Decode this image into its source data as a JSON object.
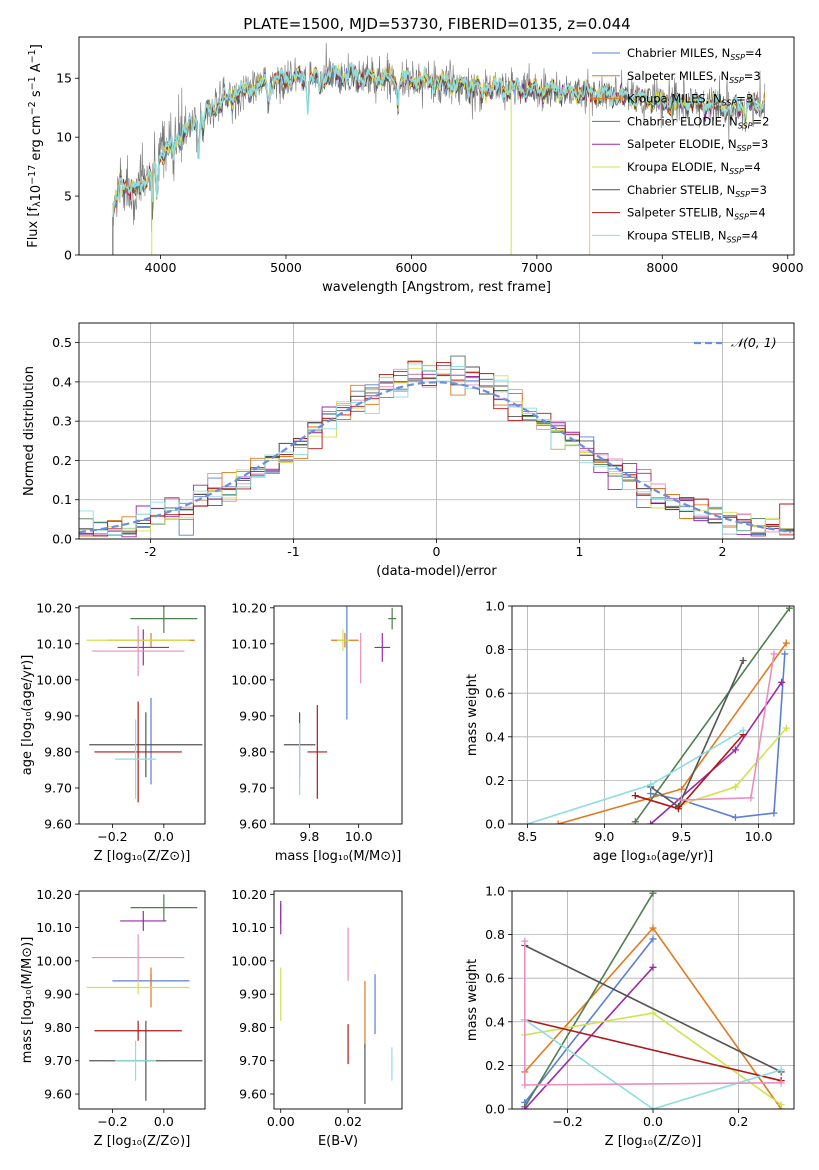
{
  "figure": {
    "title": "PLATE=1500, MJD=53730, FIBERID=0135, z=0.044"
  },
  "colors": {
    "series": [
      "#5b7fd6",
      "#e6e14f",
      "#e07a1f",
      "#4f7f4f",
      "#9b2aa8",
      "#d0e252",
      "#555555",
      "#b01818",
      "#8fdde0"
    ],
    "pink": "#e98fc2",
    "gauss": "#6a8fe0",
    "grid": "#b0b0b0"
  },
  "chart_data": [
    {
      "id": "spectrum",
      "type": "line",
      "xlabel": "wavelength [Angstrom, rest frame]",
      "ylabel_parts": [
        "Flux [f",
        "λ",
        "10",
        "−17",
        " erg cm",
        "−2",
        " s",
        "−1",
        " A",
        "−1",
        "]"
      ],
      "xlim": [
        3350,
        9050
      ],
      "ylim": [
        0,
        18.5
      ],
      "xticks": [
        4000,
        5000,
        6000,
        7000,
        8000,
        9000
      ],
      "yticks": [
        0,
        5,
        10,
        15
      ],
      "grid": false,
      "legend_position": "top-right",
      "legend": [
        {
          "name": "Chabrier MILES, N",
          "sub": "SSP",
          "tail": "=4"
        },
        {
          "name": "Salpeter MILES, N",
          "sub": "SSP",
          "tail": "=3"
        },
        {
          "name": "Kroupa MILES, N",
          "sub": "SSP",
          "tail": "=3"
        },
        {
          "name": "Chabrier ELODIE, N",
          "sub": "SSP",
          "tail": "=2"
        },
        {
          "name": "Salpeter ELODIE, N",
          "sub": "SSP",
          "tail": "=3"
        },
        {
          "name": "Kroupa ELODIE, N",
          "sub": "SSP",
          "tail": "=4"
        },
        {
          "name": "Chabrier STELIB, N",
          "sub": "SSP",
          "tail": "=3"
        },
        {
          "name": "Salpeter STELIB, N",
          "sub": "SSP",
          "tail": "=4"
        },
        {
          "name": "Kroupa STELIB, N",
          "sub": "SSP",
          "tail": "=4"
        }
      ],
      "continuum": [
        [
          3620,
          3.2
        ],
        [
          3680,
          6.3
        ],
        [
          3780,
          5.3
        ],
        [
          3900,
          6.6
        ],
        [
          4000,
          8.4
        ],
        [
          4100,
          9.6
        ],
        [
          4250,
          10.9
        ],
        [
          4400,
          12.4
        ],
        [
          4600,
          13.6
        ],
        [
          4800,
          14.4
        ],
        [
          5000,
          14.9
        ],
        [
          5200,
          15.0
        ],
        [
          5400,
          15.3
        ],
        [
          5600,
          15.1
        ],
        [
          5800,
          15.0
        ],
        [
          6000,
          14.8
        ],
        [
          6300,
          14.5
        ],
        [
          6600,
          14.2
        ],
        [
          7000,
          14.0
        ],
        [
          7300,
          13.8
        ],
        [
          7600,
          13.6
        ],
        [
          8000,
          13.0
        ],
        [
          8400,
          12.7
        ],
        [
          8820,
          12.8
        ]
      ],
      "absorption_lines": [
        [
          3935,
          3.5
        ],
        [
          3970,
          3.0
        ],
        [
          4102,
          1.5
        ],
        [
          4305,
          2.2
        ],
        [
          4341,
          1.2
        ],
        [
          4862,
          1.5
        ],
        [
          5175,
          2.3
        ],
        [
          5270,
          1.2
        ],
        [
          5890,
          2.0
        ],
        [
          6563,
          1.5
        ],
        [
          8500,
          1.0
        ],
        [
          8545,
          1.5
        ],
        [
          8665,
          1.2
        ]
      ],
      "dropouts": [
        {
          "series": 5,
          "x": 6795,
          "to": 0
        },
        {
          "series": 2,
          "x": 7420,
          "to": 0
        },
        {
          "series": 1,
          "x": 7420,
          "to": 0
        },
        {
          "series": 5,
          "x": 3930,
          "to": 0
        },
        {
          "series": 6,
          "x": 3620,
          "to": 0
        }
      ]
    },
    {
      "id": "residuals",
      "type": "line",
      "xlabel": "(data-model)/error",
      "ylabel": "Normed distribution",
      "xlim": [
        -2.5,
        2.5
      ],
      "ylim": [
        0,
        0.55
      ],
      "xticks": [
        -2,
        -1,
        0,
        1,
        2
      ],
      "yticks": [
        0.0,
        0.1,
        0.2,
        0.3,
        0.4,
        0.5
      ],
      "grid": true,
      "legend_position": "top-right",
      "legend": [
        {
          "name": "𝒩(0, 1)"
        }
      ],
      "bin_width": 0.1,
      "gaussian": {
        "mu": 0,
        "sigma": 1
      }
    },
    {
      "id": "age-vs-Z",
      "type": "scatter",
      "xlabel": "Z [log₁₀(Z/Z⊙)]",
      "ylabel": "age  [log₁₀(age/yr)]",
      "xlim": [
        -0.33,
        0.16
      ],
      "ylim": [
        9.6,
        10.205
      ],
      "xticks": [
        -0.2,
        0.0
      ],
      "yticks": [
        9.6,
        9.7,
        9.8,
        9.9,
        10.0,
        10.1,
        10.2
      ],
      "grid": false,
      "points": [
        {
          "color": "#5b7fd6",
          "x": -0.05,
          "y": 9.83,
          "xerr": 0.0,
          "yerr": 0.12
        },
        {
          "color": "#e07a1f",
          "x": -0.05,
          "y": 10.11,
          "xerr": 0.17,
          "yerr": 0.02
        },
        {
          "color": "#4f7f4f",
          "x": 0.0,
          "y": 10.17,
          "xerr": 0.13,
          "yerr": 0.04
        },
        {
          "color": "#9b2aa8",
          "x": -0.08,
          "y": 10.09,
          "xerr": 0.1,
          "yerr": 0.05
        },
        {
          "color": "#d0e252",
          "x": -0.1,
          "y": 10.11,
          "xerr": 0.2,
          "yerr": 0.03
        },
        {
          "color": "#555555",
          "x": -0.07,
          "y": 9.82,
          "xerr": 0.22,
          "yerr": 0.09
        },
        {
          "color": "#b01818",
          "x": -0.1,
          "y": 9.8,
          "xerr": 0.17,
          "yerr": 0.14
        },
        {
          "color": "#8fdde0",
          "x": -0.11,
          "y": 9.78,
          "xerr": 0.08,
          "yerr": 0.11
        },
        {
          "color": "#e98fc2",
          "x": -0.1,
          "y": 10.08,
          "xerr": 0.18,
          "yerr": 0.07
        }
      ]
    },
    {
      "id": "age-vs-mass",
      "type": "scatter",
      "xlabel": "mass [log₁₀(M/M⊙)]",
      "xlim": [
        9.57,
        10.22
      ],
      "ylim": [
        9.6,
        10.205
      ],
      "xticks": [
        9.75,
        10.0
      ],
      "yticks": [
        9.6,
        9.7,
        9.8,
        9.9,
        10.0,
        10.1,
        10.2
      ],
      "grid": false,
      "points": [
        {
          "color": "#5b7fd6",
          "x": 9.94,
          "y": 10.1,
          "xerr": 0.0,
          "yerr": 0.21
        },
        {
          "color": "#e07a1f",
          "x": 9.93,
          "y": 10.11,
          "xerr": 0.07,
          "yerr": 0.02
        },
        {
          "color": "#4f7f4f",
          "x": 10.17,
          "y": 10.17,
          "xerr": 0.02,
          "yerr": 0.03
        },
        {
          "color": "#9b2aa8",
          "x": 10.12,
          "y": 10.09,
          "xerr": 0.04,
          "yerr": 0.04
        },
        {
          "color": "#d0e252",
          "x": 9.92,
          "y": 10.11,
          "xerr": 0.03,
          "yerr": 0.03
        },
        {
          "color": "#555555",
          "x": 9.7,
          "y": 9.82,
          "xerr": 0.08,
          "yerr": 0.09
        },
        {
          "color": "#b01818",
          "x": 9.79,
          "y": 9.8,
          "xerr": 0.05,
          "yerr": 0.13
        },
        {
          "color": "#8fdde0",
          "x": 9.7,
          "y": 9.78,
          "xerr": 0.0,
          "yerr": 0.1
        },
        {
          "color": "#e98fc2",
          "x": 10.01,
          "y": 10.06,
          "xerr": 0.0,
          "yerr": 0.07
        }
      ]
    },
    {
      "id": "weight-vs-age",
      "type": "line",
      "xlabel": "age  [log₁₀(age/yr)]",
      "ylabel": "mass weight",
      "xlim": [
        8.4,
        10.23
      ],
      "ylim": [
        0,
        1.0
      ],
      "xticks": [
        8.5,
        9.0,
        9.5,
        10.0
      ],
      "yticks": [
        0.0,
        0.2,
        0.4,
        0.6,
        0.8,
        1.0
      ],
      "grid": true,
      "series": [
        {
          "color": "#5b7fd6",
          "points": [
            [
              9.3,
              0.14
            ],
            [
              9.5,
              0.11
            ],
            [
              9.85,
              0.03
            ],
            [
              10.1,
              0.05
            ],
            [
              10.17,
              0.78
            ]
          ]
        },
        {
          "color": "#e07a1f",
          "points": [
            [
              8.7,
              0.0
            ],
            [
              9.5,
              0.16
            ],
            [
              10.18,
              0.83
            ]
          ]
        },
        {
          "color": "#4f7f4f",
          "points": [
            [
              9.2,
              0.01
            ],
            [
              10.2,
              0.99
            ]
          ]
        },
        {
          "color": "#9b2aa8",
          "points": [
            [
              9.3,
              0.0
            ],
            [
              9.85,
              0.34
            ],
            [
              10.15,
              0.65
            ]
          ]
        },
        {
          "color": "#d0e252",
          "points": [
            [
              9.5,
              0.09
            ],
            [
              9.85,
              0.17
            ],
            [
              10.18,
              0.44
            ]
          ]
        },
        {
          "color": "#555555",
          "points": [
            [
              9.3,
              0.17
            ],
            [
              9.48,
              0.08
            ],
            [
              9.9,
              0.75
            ]
          ]
        },
        {
          "color": "#b01818",
          "points": [
            [
              9.2,
              0.13
            ],
            [
              9.48,
              0.07
            ],
            [
              9.9,
              0.41
            ]
          ]
        },
        {
          "color": "#8fdde0",
          "points": [
            [
              8.5,
              0.0
            ],
            [
              9.3,
              0.18
            ],
            [
              9.9,
              0.43
            ]
          ]
        },
        {
          "color": "#e98fc2",
          "points": [
            [
              9.5,
              0.11
            ],
            [
              9.95,
              0.12
            ],
            [
              10.1,
              0.78
            ]
          ]
        }
      ]
    },
    {
      "id": "mass-vs-Z",
      "type": "scatter",
      "xlabel": "Z [log₁₀(Z/Z⊙)]",
      "ylabel": "mass [log₁₀(M/M⊙)]",
      "xlim": [
        -0.33,
        0.16
      ],
      "ylim": [
        9.555,
        10.21
      ],
      "xticks": [
        -0.2,
        0.0
      ],
      "yticks": [
        9.6,
        9.7,
        9.8,
        9.9,
        10.0,
        10.1,
        10.2
      ],
      "grid": false,
      "points": [
        {
          "color": "#5b7fd6",
          "x": -0.05,
          "y": 9.94,
          "xerr": 0.15,
          "yerr": 0.02
        },
        {
          "color": "#e07a1f",
          "x": -0.05,
          "y": 9.92,
          "xerr": 0.0,
          "yerr": 0.06
        },
        {
          "color": "#4f7f4f",
          "x": 0.0,
          "y": 10.16,
          "xerr": 0.13,
          "yerr": 0.04
        },
        {
          "color": "#9b2aa8",
          "x": -0.08,
          "y": 10.12,
          "xerr": 0.09,
          "yerr": 0.03
        },
        {
          "color": "#d0e252",
          "x": -0.1,
          "y": 9.92,
          "xerr": 0.2,
          "yerr": 0.02
        },
        {
          "color": "#555555",
          "x": -0.07,
          "y": 9.7,
          "xerr": 0.22,
          "yerr": 0.12
        },
        {
          "color": "#b01818",
          "x": -0.1,
          "y": 9.79,
          "xerr": 0.17,
          "yerr": 0.03
        },
        {
          "color": "#8fdde0",
          "x": -0.11,
          "y": 9.7,
          "xerr": 0.08,
          "yerr": 0.06
        },
        {
          "color": "#e98fc2",
          "x": -0.1,
          "y": 10.01,
          "xerr": 0.18,
          "yerr": 0.07
        }
      ]
    },
    {
      "id": "mass-vs-ebv",
      "type": "scatter",
      "xlabel": "E(B-V)",
      "xlim": [
        -0.002,
        0.036
      ],
      "ylim": [
        9.555,
        10.21
      ],
      "xticks": [
        0.0,
        0.02
      ],
      "yticks": [
        9.6,
        9.7,
        9.8,
        9.9,
        10.0,
        10.1,
        10.2
      ],
      "grid": false,
      "points": [
        {
          "color": "#5b7fd6",
          "x": 0.028,
          "y": 9.87,
          "xerr": 0.0,
          "yerr": 0.09
        },
        {
          "color": "#e07a1f",
          "x": 0.025,
          "y": 9.84,
          "xerr": 0.0,
          "yerr": 0.1
        },
        {
          "color": "#4f7f4f",
          "x": 0.0,
          "y": 10.14,
          "xerr": 0.0,
          "yerr": 0.03
        },
        {
          "color": "#9b2aa8",
          "x": 0.0,
          "y": 10.13,
          "xerr": 0.0,
          "yerr": 0.05
        },
        {
          "color": "#d0e252",
          "x": 0.0,
          "y": 9.9,
          "xerr": 0.0,
          "yerr": 0.08
        },
        {
          "color": "#555555",
          "x": 0.025,
          "y": 9.66,
          "xerr": 0.0,
          "yerr": 0.09
        },
        {
          "color": "#b01818",
          "x": 0.02,
          "y": 9.75,
          "xerr": 0.0,
          "yerr": 0.06
        },
        {
          "color": "#8fdde0",
          "x": 0.033,
          "y": 9.69,
          "xerr": 0.0,
          "yerr": 0.05
        },
        {
          "color": "#e98fc2",
          "x": 0.02,
          "y": 10.02,
          "xerr": 0.0,
          "yerr": 0.08
        }
      ]
    },
    {
      "id": "weight-vs-Z",
      "type": "line",
      "xlabel": "Z [log₁₀(Z/Z⊙)]",
      "ylabel": "mass weight",
      "xlim": [
        -0.33,
        0.33
      ],
      "ylim": [
        0,
        1.0
      ],
      "xticks": [
        -0.2,
        0.0,
        0.2
      ],
      "yticks": [
        0.0,
        0.2,
        0.4,
        0.6,
        0.8,
        1.0
      ],
      "grid": true,
      "series": [
        {
          "color": "#5b7fd6",
          "points": [
            [
              -0.3,
              0.03
            ],
            [
              0.0,
              0.78
            ]
          ]
        },
        {
          "color": "#e07a1f",
          "points": [
            [
              -0.3,
              0.17
            ],
            [
              0.0,
              0.83
            ],
            [
              0.3,
              0.0
            ]
          ]
        },
        {
          "color": "#4f7f4f",
          "points": [
            [
              -0.3,
              0.01
            ],
            [
              0.0,
              0.99
            ]
          ]
        },
        {
          "color": "#9b2aa8",
          "points": [
            [
              -0.3,
              0.0
            ],
            [
              0.0,
              0.65
            ]
          ]
        },
        {
          "color": "#d0e252",
          "points": [
            [
              -0.3,
              0.34
            ],
            [
              0.0,
              0.44
            ],
            [
              0.3,
              0.02
            ]
          ]
        },
        {
          "color": "#555555",
          "points": [
            [
              -0.3,
              0.75
            ],
            [
              0.3,
              0.17
            ]
          ]
        },
        {
          "color": "#b01818",
          "points": [
            [
              -0.3,
              0.41
            ],
            [
              0.3,
              0.13
            ]
          ]
        },
        {
          "color": "#8fdde0",
          "points": [
            [
              -0.3,
              0.41
            ],
            [
              0.0,
              0.0
            ],
            [
              0.3,
              0.18
            ]
          ]
        },
        {
          "color": "#e98fc2",
          "points": [
            [
              -0.3,
              0.77
            ],
            [
              -0.3,
              0.11
            ],
            [
              0.3,
              0.12
            ]
          ]
        }
      ]
    }
  ]
}
